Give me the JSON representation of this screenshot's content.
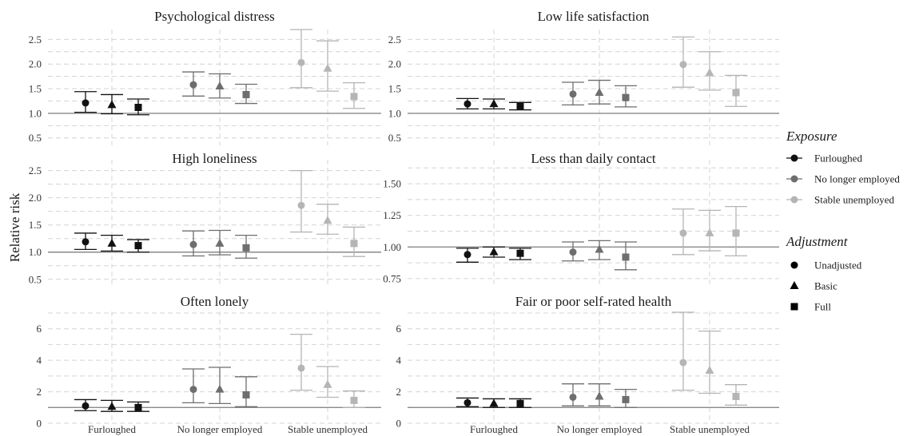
{
  "ylabel": "Relative risk",
  "colors": {
    "Furloughed": "#111111",
    "No longer employed": "#6e6e6e",
    "Stable unemployed": "#b5b5b5",
    "grid": "#d4d4d4",
    "reference_line": "#8a8a8a"
  },
  "legend": {
    "placement": "right",
    "exposure_title": "Exposure",
    "exposure_items": [
      "Furloughed",
      "No longer employed",
      "Stable unemployed"
    ],
    "adjustment_title": "Adjustment",
    "adjustment_items": [
      {
        "label": "Unadjusted",
        "shape": "circle"
      },
      {
        "label": "Basic",
        "shape": "triangle"
      },
      {
        "label": "Full",
        "shape": "square"
      }
    ]
  },
  "chart_data": [
    {
      "type": "errorbar",
      "title": "Psychological distress",
      "categories": [
        "Furloughed",
        "No longer employed",
        "Stable unemployed"
      ],
      "ylim": [
        0.35,
        2.7
      ],
      "yticks": [
        "0.5",
        "1.0",
        "1.5",
        "2.0",
        "2.5"
      ],
      "reference_line": 1.0,
      "series": [
        {
          "exposure": "Furloughed",
          "points": [
            {
              "adjustment": "Unadjusted",
              "estimate": 1.21,
              "lower": 1.02,
              "upper": 1.44
            },
            {
              "adjustment": "Basic",
              "estimate": 1.17,
              "lower": 0.99,
              "upper": 1.38
            },
            {
              "adjustment": "Full",
              "estimate": 1.12,
              "lower": 0.97,
              "upper": 1.29
            }
          ]
        },
        {
          "exposure": "No longer employed",
          "points": [
            {
              "adjustment": "Unadjusted",
              "estimate": 1.58,
              "lower": 1.35,
              "upper": 1.84
            },
            {
              "adjustment": "Basic",
              "estimate": 1.55,
              "lower": 1.31,
              "upper": 1.8
            },
            {
              "adjustment": "Full",
              "estimate": 1.38,
              "lower": 1.2,
              "upper": 1.59
            }
          ]
        },
        {
          "exposure": "Stable unemployed",
          "points": [
            {
              "adjustment": "Unadjusted",
              "estimate": 2.03,
              "lower": 1.52,
              "upper": 2.7
            },
            {
              "adjustment": "Basic",
              "estimate": 1.91,
              "lower": 1.45,
              "upper": 2.47
            },
            {
              "adjustment": "Full",
              "estimate": 1.34,
              "lower": 1.1,
              "upper": 1.62
            }
          ]
        }
      ]
    },
    {
      "type": "errorbar",
      "title": "Low life satisfaction",
      "categories": [
        "Furloughed",
        "No longer employed",
        "Stable unemployed"
      ],
      "ylim": [
        0.35,
        2.7
      ],
      "yticks": [
        "0.5",
        "1.0",
        "1.5",
        "2.0",
        "2.5"
      ],
      "reference_line": 1.0,
      "series": [
        {
          "exposure": "Furloughed",
          "points": [
            {
              "adjustment": "Unadjusted",
              "estimate": 1.19,
              "lower": 1.09,
              "upper": 1.3
            },
            {
              "adjustment": "Basic",
              "estimate": 1.19,
              "lower": 1.09,
              "upper": 1.29
            },
            {
              "adjustment": "Full",
              "estimate": 1.14,
              "lower": 1.07,
              "upper": 1.22
            }
          ]
        },
        {
          "exposure": "No longer employed",
          "points": [
            {
              "adjustment": "Unadjusted",
              "estimate": 1.39,
              "lower": 1.17,
              "upper": 1.63
            },
            {
              "adjustment": "Basic",
              "estimate": 1.42,
              "lower": 1.19,
              "upper": 1.67
            },
            {
              "adjustment": "Full",
              "estimate": 1.32,
              "lower": 1.13,
              "upper": 1.56
            }
          ]
        },
        {
          "exposure": "Stable unemployed",
          "points": [
            {
              "adjustment": "Unadjusted",
              "estimate": 1.99,
              "lower": 1.53,
              "upper": 2.55
            },
            {
              "adjustment": "Basic",
              "estimate": 1.82,
              "lower": 1.47,
              "upper": 2.25
            },
            {
              "adjustment": "Full",
              "estimate": 1.42,
              "lower": 1.14,
              "upper": 1.77
            }
          ]
        }
      ]
    },
    {
      "type": "errorbar",
      "title": "High loneliness",
      "categories": [
        "Furloughed",
        "No longer employed",
        "Stable unemployed"
      ],
      "ylim": [
        0.35,
        2.7
      ],
      "yticks": [
        "0.5",
        "1.0",
        "1.5",
        "2.0",
        "2.5"
      ],
      "reference_line": 1.0,
      "series": [
        {
          "exposure": "Furloughed",
          "points": [
            {
              "adjustment": "Unadjusted",
              "estimate": 1.19,
              "lower": 1.05,
              "upper": 1.35
            },
            {
              "adjustment": "Basic",
              "estimate": 1.16,
              "lower": 1.02,
              "upper": 1.31
            },
            {
              "adjustment": "Full",
              "estimate": 1.12,
              "lower": 1.0,
              "upper": 1.23
            }
          ]
        },
        {
          "exposure": "No longer employed",
          "points": [
            {
              "adjustment": "Unadjusted",
              "estimate": 1.14,
              "lower": 0.93,
              "upper": 1.39
            },
            {
              "adjustment": "Basic",
              "estimate": 1.16,
              "lower": 0.95,
              "upper": 1.4
            },
            {
              "adjustment": "Full",
              "estimate": 1.08,
              "lower": 0.89,
              "upper": 1.31
            }
          ]
        },
        {
          "exposure": "Stable unemployed",
          "points": [
            {
              "adjustment": "Unadjusted",
              "estimate": 1.86,
              "lower": 1.37,
              "upper": 2.5
            },
            {
              "adjustment": "Basic",
              "estimate": 1.58,
              "lower": 1.33,
              "upper": 1.88
            },
            {
              "adjustment": "Full",
              "estimate": 1.16,
              "lower": 0.92,
              "upper": 1.46
            }
          ]
        }
      ]
    },
    {
      "type": "errorbar",
      "title": "Less than daily contact",
      "categories": [
        "Furloughed",
        "No longer employed",
        "Stable unemployed"
      ],
      "ylim": [
        0.68,
        1.69
      ],
      "yticks": [
        "0.75",
        "1.00",
        "1.25",
        "1.50"
      ],
      "reference_line": 1.0,
      "series": [
        {
          "exposure": "Furloughed",
          "points": [
            {
              "adjustment": "Unadjusted",
              "estimate": 0.94,
              "lower": 0.88,
              "upper": 0.99
            },
            {
              "adjustment": "Basic",
              "estimate": 0.96,
              "lower": 0.92,
              "upper": 1.0
            },
            {
              "adjustment": "Full",
              "estimate": 0.95,
              "lower": 0.9,
              "upper": 0.99
            }
          ]
        },
        {
          "exposure": "No longer employed",
          "points": [
            {
              "adjustment": "Unadjusted",
              "estimate": 0.96,
              "lower": 0.89,
              "upper": 1.04
            },
            {
              "adjustment": "Basic",
              "estimate": 0.98,
              "lower": 0.9,
              "upper": 1.05
            },
            {
              "adjustment": "Full",
              "estimate": 0.92,
              "lower": 0.82,
              "upper": 1.04
            }
          ]
        },
        {
          "exposure": "Stable unemployed",
          "points": [
            {
              "adjustment": "Unadjusted",
              "estimate": 1.11,
              "lower": 0.94,
              "upper": 1.3
            },
            {
              "adjustment": "Basic",
              "estimate": 1.11,
              "lower": 0.97,
              "upper": 1.29
            },
            {
              "adjustment": "Full",
              "estimate": 1.11,
              "lower": 0.93,
              "upper": 1.32
            }
          ]
        }
      ]
    },
    {
      "type": "errorbar",
      "title": "Often lonely",
      "categories": [
        "Furloughed",
        "No longer employed",
        "Stable unemployed"
      ],
      "ylim": [
        0,
        7.1
      ],
      "yticks": [
        "0",
        "2",
        "4",
        "6"
      ],
      "reference_line": 1.0,
      "series": [
        {
          "exposure": "Furloughed",
          "points": [
            {
              "adjustment": "Unadjusted",
              "estimate": 1.1,
              "lower": 0.8,
              "upper": 1.5
            },
            {
              "adjustment": "Basic",
              "estimate": 1.05,
              "lower": 0.75,
              "upper": 1.45
            },
            {
              "adjustment": "Full",
              "estimate": 1.0,
              "lower": 0.75,
              "upper": 1.35
            }
          ]
        },
        {
          "exposure": "No longer employed",
          "points": [
            {
              "adjustment": "Unadjusted",
              "estimate": 2.15,
              "lower": 1.3,
              "upper": 3.45
            },
            {
              "adjustment": "Basic",
              "estimate": 2.15,
              "lower": 1.25,
              "upper": 3.55
            },
            {
              "adjustment": "Full",
              "estimate": 1.8,
              "lower": 1.05,
              "upper": 2.95
            }
          ]
        },
        {
          "exposure": "Stable unemployed",
          "points": [
            {
              "adjustment": "Unadjusted",
              "estimate": 3.5,
              "lower": 2.1,
              "upper": 5.65
            },
            {
              "adjustment": "Basic",
              "estimate": 2.45,
              "lower": 1.65,
              "upper": 3.6
            },
            {
              "adjustment": "Full",
              "estimate": 1.45,
              "lower": 1.0,
              "upper": 2.05
            }
          ]
        }
      ]
    },
    {
      "type": "errorbar",
      "title": "Fair or poor self-rated health",
      "categories": [
        "Furloughed",
        "No longer employed",
        "Stable unemployed"
      ],
      "ylim": [
        0,
        7.1
      ],
      "yticks": [
        "0",
        "2",
        "4",
        "6"
      ],
      "reference_line": 1.0,
      "series": [
        {
          "exposure": "Furloughed",
          "points": [
            {
              "adjustment": "Unadjusted",
              "estimate": 1.3,
              "lower": 1.05,
              "upper": 1.6
            },
            {
              "adjustment": "Basic",
              "estimate": 1.25,
              "lower": 1.0,
              "upper": 1.55
            },
            {
              "adjustment": "Full",
              "estimate": 1.25,
              "lower": 1.0,
              "upper": 1.55
            }
          ]
        },
        {
          "exposure": "No longer employed",
          "points": [
            {
              "adjustment": "Unadjusted",
              "estimate": 1.65,
              "lower": 1.1,
              "upper": 2.5
            },
            {
              "adjustment": "Basic",
              "estimate": 1.7,
              "lower": 1.1,
              "upper": 2.5
            },
            {
              "adjustment": "Full",
              "estimate": 1.5,
              "lower": 1.0,
              "upper": 2.15
            }
          ]
        },
        {
          "exposure": "Stable unemployed",
          "points": [
            {
              "adjustment": "Unadjusted",
              "estimate": 3.85,
              "lower": 2.1,
              "upper": 7.05
            },
            {
              "adjustment": "Basic",
              "estimate": 3.35,
              "lower": 1.9,
              "upper": 5.85
            },
            {
              "adjustment": "Full",
              "estimate": 1.7,
              "lower": 1.15,
              "upper": 2.45
            }
          ]
        }
      ]
    }
  ]
}
